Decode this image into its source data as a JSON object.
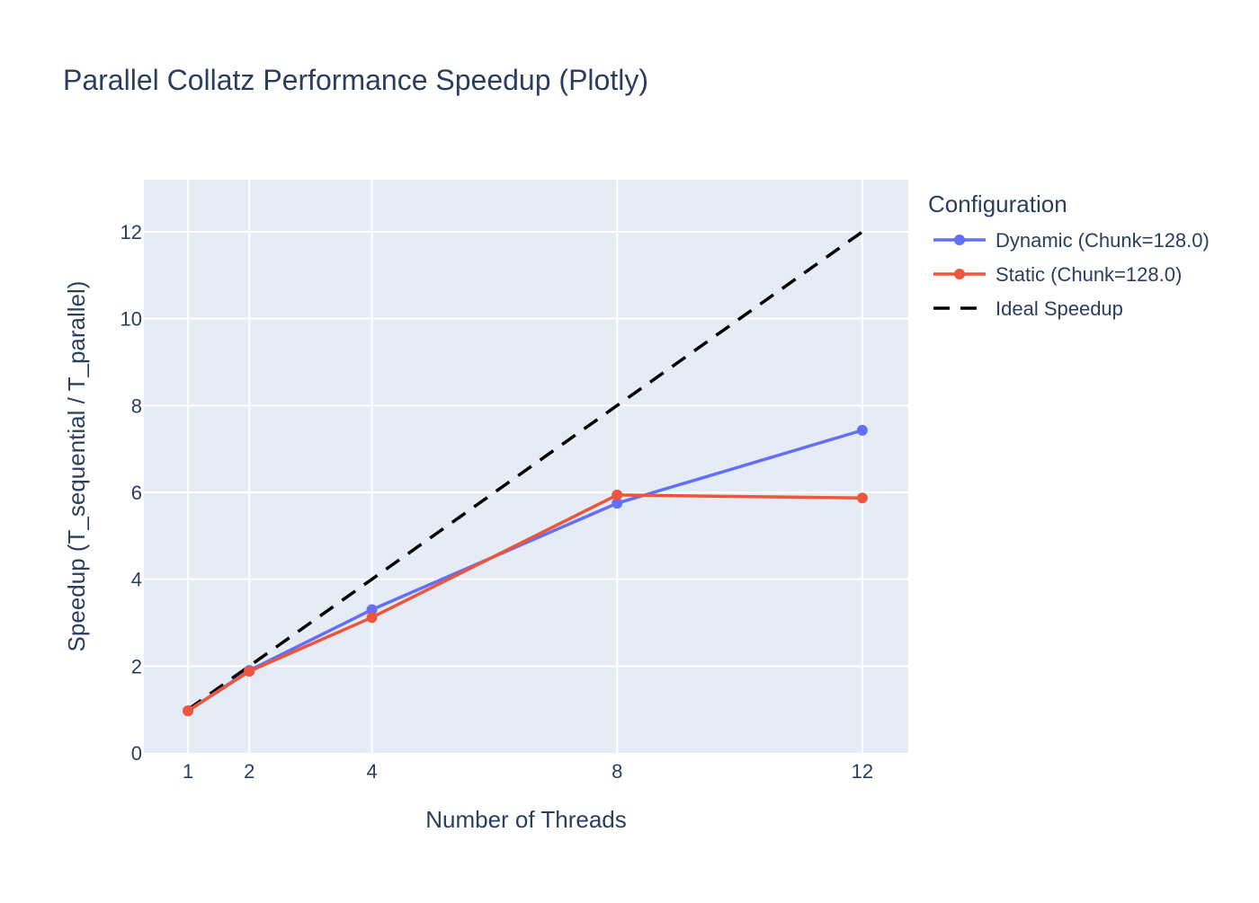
{
  "chart_data": {
    "type": "line",
    "title": "Parallel Collatz Performance Speedup (Plotly)",
    "xlabel": "Number of Threads",
    "ylabel": "Speedup (T_sequential / T_parallel)",
    "x_ticks": [
      1,
      2,
      4,
      8,
      12
    ],
    "y_ticks": [
      0,
      2,
      4,
      6,
      8,
      10,
      12
    ],
    "xlim": [
      0.28,
      12.75
    ],
    "ylim": [
      0,
      13.2
    ],
    "grid": true,
    "legend": {
      "title": "Configuration",
      "placement": "right"
    },
    "series": [
      {
        "name": "Dynamic (Chunk=128.0)",
        "color": "#636efa",
        "style": "lines+markers",
        "x": [
          1,
          2,
          4,
          8,
          12
        ],
        "y": [
          0.97,
          1.9,
          3.3,
          5.75,
          7.43
        ]
      },
      {
        "name": "Static (Chunk=128.0)",
        "color": "#ef553b",
        "style": "lines+markers",
        "x": [
          1,
          2,
          4,
          8,
          12
        ],
        "y": [
          0.97,
          1.88,
          3.12,
          5.94,
          5.87
        ]
      },
      {
        "name": "Ideal Speedup",
        "color": "#000000",
        "style": "dash",
        "x": [
          1,
          2,
          4,
          8,
          12
        ],
        "y": [
          1,
          2,
          4,
          8,
          12
        ]
      }
    ],
    "colors": {
      "plot_bg": "#e5ecf6",
      "grid": "#ffffff",
      "text": "#2a3f5f"
    }
  }
}
